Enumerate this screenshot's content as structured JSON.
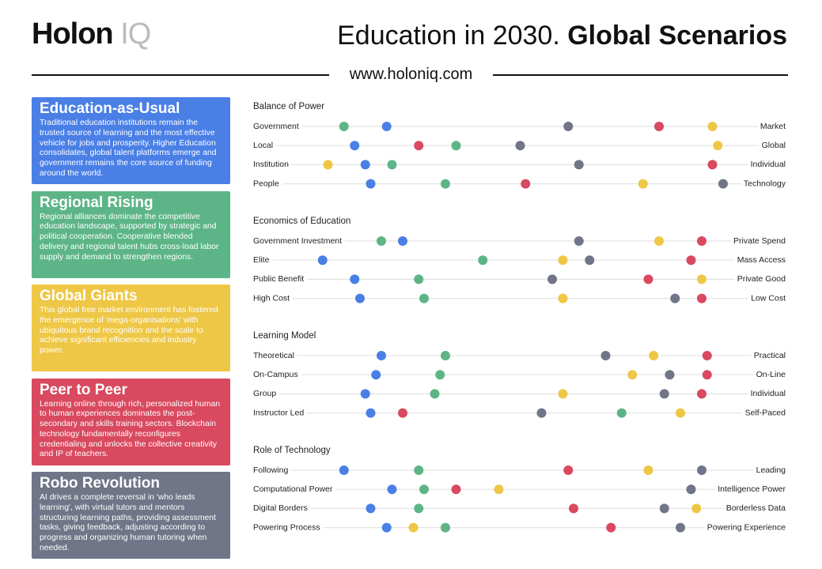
{
  "header": {
    "logo_main": "Holon",
    "logo_accent": "IQ",
    "title_light": "Education in 2030.",
    "title_bold": "Global Scenarios",
    "url": "www.holoniq.com"
  },
  "scenarios": [
    {
      "name": "Education-as-Usual",
      "color": "#4a7fe6",
      "description": "Traditional education institutions remain the trusted source of learning and the most effective vehicle for jobs and prosperity. Higher Education consolidates, global talent platforms emerge and government remains the core source of funding around the world."
    },
    {
      "name": "Regional Rising",
      "color": "#5db587",
      "description": "Regional alliances dominate the competitive education landscape, supported by strategic and political cooperation. Cooperative blended delivery and regional talent hubs cross-load labor supply and demand to strengthen regions."
    },
    {
      "name": "Global Giants",
      "color": "#eec746",
      "description": "This global free market environment has fostered the emergence of 'mega-organisations' with ubiquitous brand recognition and the scale to achieve significant efficiencies and industry power."
    },
    {
      "name": "Peer to Peer",
      "color": "#d9495f",
      "description": "Learning online through rich, personalized human to human experiences dominates the post-secondary and skills training sectors. Blockchain technology fundamentally reconfigures credentialing and unlocks the collective creativity and IP of teachers."
    },
    {
      "name": "Robo Revolution",
      "color": "#707587",
      "description": "AI drives a complete reversal in 'who leads learning', with virtual tutors and mentors structuring learning paths, providing assessment tasks, giving feedback, adjusting according to progress and organizing human tutoring when needed."
    }
  ],
  "sections": [
    {
      "title": "Balance of Power",
      "rows": [
        {
          "left": "Government",
          "right": "Market",
          "positions": [
            25,
            17,
            86,
            76,
            59
          ]
        },
        {
          "left": "Local",
          "right": "Global",
          "positions": [
            19,
            38,
            87,
            31,
            50
          ]
        },
        {
          "left": "Institution",
          "right": "Individual",
          "positions": [
            21,
            26,
            14,
            86,
            61
          ]
        },
        {
          "left": "People",
          "right": "Technology",
          "positions": [
            22,
            36,
            73,
            51,
            88
          ]
        }
      ]
    },
    {
      "title": "Economics of Education",
      "rows": [
        {
          "left": "Government Investment",
          "right": "Private Spend",
          "positions": [
            28,
            24,
            76,
            84,
            61
          ]
        },
        {
          "left": "Elite",
          "right": "Mass Access",
          "positions": [
            13,
            43,
            58,
            82,
            63
          ]
        },
        {
          "left": "Public Benefit",
          "right": "Private Good",
          "positions": [
            19,
            31,
            84,
            74,
            56
          ]
        },
        {
          "left": "High Cost",
          "right": "Low Cost",
          "positions": [
            20,
            32,
            58,
            84,
            79
          ]
        }
      ]
    },
    {
      "title": "Learning Model",
      "rows": [
        {
          "left": "Theoretical",
          "right": "Practical",
          "positions": [
            24,
            36,
            75,
            85,
            66
          ]
        },
        {
          "left": "On-Campus",
          "right": "On-Line",
          "positions": [
            23,
            35,
            71,
            85,
            78
          ]
        },
        {
          "left": "Group",
          "right": "Individual",
          "positions": [
            21,
            34,
            58,
            84,
            77
          ]
        },
        {
          "left": "Instructor Led",
          "right": "Self-Paced",
          "positions": [
            22,
            69,
            80,
            28,
            54
          ]
        }
      ]
    },
    {
      "title": "Role of Technology",
      "rows": [
        {
          "left": "Following",
          "right": "Leading",
          "positions": [
            17,
            31,
            74,
            59,
            84
          ]
        },
        {
          "left": "Computational Power",
          "right": "Intelligence Power",
          "positions": [
            26,
            32,
            46,
            38,
            82
          ]
        },
        {
          "left": "Digital Borders",
          "right": "Borderless Data",
          "positions": [
            22,
            31,
            83,
            60,
            77
          ]
        },
        {
          "left": "Powering Process",
          "right": "Powering Experience",
          "positions": [
            25,
            36,
            30,
            67,
            80
          ]
        }
      ]
    }
  ]
}
